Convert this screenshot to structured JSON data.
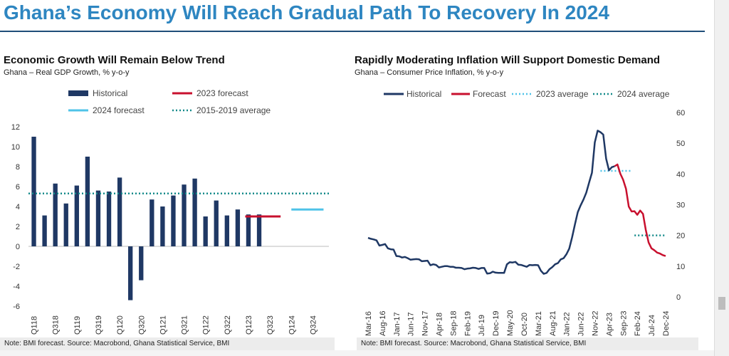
{
  "page": {
    "title": "Ghana’s Economy Will Reach Gradual Path To Recovery In 2024"
  },
  "colors": {
    "historical": "#1f3864",
    "forecast": "#c8102e",
    "avg_light": "#4fc3e8",
    "avg_dark": "#138a8a",
    "title": "#2e86c1"
  },
  "chart_data": [
    {
      "type": "bar",
      "title": "Economic Growth Will Remain Below Trend",
      "subtitle": "Ghana – Real GDP Growth, % y-o-y",
      "ylim": [
        -6,
        12
      ],
      "yticks": [
        12,
        10,
        8,
        6,
        4,
        2,
        0,
        -2,
        -4,
        -6
      ],
      "categories": [
        "Q118",
        "Q218",
        "Q318",
        "Q418",
        "Q119",
        "Q219",
        "Q319",
        "Q419",
        "Q120",
        "Q220",
        "Q320",
        "Q420",
        "Q121",
        "Q221",
        "Q321",
        "Q421",
        "Q122",
        "Q222",
        "Q322",
        "Q422",
        "Q123",
        "Q223",
        "Q323",
        "Q423",
        "Q124",
        "Q224",
        "Q324",
        "Q424"
      ],
      "xtick_labels": [
        "Q118",
        "Q318",
        "Q119",
        "Q319",
        "Q120",
        "Q320",
        "Q121",
        "Q321",
        "Q122",
        "Q322",
        "Q123",
        "Q323",
        "Q124",
        "Q324"
      ],
      "series": [
        {
          "name": "Historical",
          "type": "bar",
          "values": [
            11.0,
            3.1,
            6.3,
            4.3,
            6.1,
            9.0,
            5.6,
            5.5,
            6.9,
            -5.4,
            -3.4,
            4.7,
            4.0,
            5.1,
            6.2,
            6.8,
            3.0,
            4.6,
            3.1,
            3.7,
            3.2,
            3.2,
            null,
            null,
            null,
            null,
            null,
            null
          ]
        },
        {
          "name": "2023 forecast",
          "type": "line",
          "x_range": [
            "Q123",
            "Q423"
          ],
          "value": 3.0
        },
        {
          "name": "2024 forecast",
          "type": "line",
          "x_range": [
            "Q124",
            "Q424"
          ],
          "value": 3.7
        },
        {
          "name": "2015-2019 average",
          "type": "dotted",
          "x_range": [
            "Q118",
            "Q424"
          ],
          "value": 5.3
        }
      ],
      "legend": [
        "Historical",
        "2023 forecast",
        "2024 forecast",
        "2015-2019 average"
      ],
      "legend_placement": "top",
      "footer": "Note: BMI forecast. Source: Macrobond, Ghana Statistical Service, BMI"
    },
    {
      "type": "line",
      "title": "Rapidly Moderating Inflation Will Support Domestic Demand",
      "subtitle": "Ghana – Consumer Price Inflation, % y-o-y",
      "ylim": [
        0,
        60
      ],
      "yticks": [
        60,
        50,
        40,
        30,
        20,
        10,
        0
      ],
      "y_axis_side": "right",
      "x_range": [
        "2016-03",
        "2024-12"
      ],
      "xtick_labels": [
        "Mar-16",
        "Aug-16",
        "Jan-17",
        "Jun-17",
        "Nov-17",
        "Apr-18",
        "Sep-18",
        "Feb-19",
        "Jul-19",
        "Dec-19",
        "May-20",
        "Oct-20",
        "Mar-21",
        "Aug-21",
        "Jan-22",
        "Jun-22",
        "Nov-22",
        "Apr-23",
        "Sep-23",
        "Feb-24",
        "Jul-24",
        "Dec-24"
      ],
      "series": [
        {
          "name": "Historical",
          "x": [
            "2016-03",
            "2016-04",
            "2016-05",
            "2016-06",
            "2016-07",
            "2016-08",
            "2016-09",
            "2016-10",
            "2016-11",
            "2016-12",
            "2017-01",
            "2017-02",
            "2017-03",
            "2017-04",
            "2017-05",
            "2017-06",
            "2017-07",
            "2017-08",
            "2017-09",
            "2017-10",
            "2017-11",
            "2017-12",
            "2018-01",
            "2018-02",
            "2018-03",
            "2018-04",
            "2018-05",
            "2018-06",
            "2018-07",
            "2018-08",
            "2018-09",
            "2018-10",
            "2018-11",
            "2018-12",
            "2019-01",
            "2019-02",
            "2019-03",
            "2019-04",
            "2019-05",
            "2019-06",
            "2019-07",
            "2019-08",
            "2019-09",
            "2019-10",
            "2019-11",
            "2019-12",
            "2020-01",
            "2020-02",
            "2020-03",
            "2020-04",
            "2020-05",
            "2020-06",
            "2020-07",
            "2020-08",
            "2020-09",
            "2020-10",
            "2020-11",
            "2020-12",
            "2021-01",
            "2021-02",
            "2021-03",
            "2021-04",
            "2021-05",
            "2021-06",
            "2021-07",
            "2021-08",
            "2021-09",
            "2021-10",
            "2021-11",
            "2021-12",
            "2022-01",
            "2022-02",
            "2022-03",
            "2022-04",
            "2022-05",
            "2022-06",
            "2022-07",
            "2022-08",
            "2022-09",
            "2022-10",
            "2022-11",
            "2022-12",
            "2023-01",
            "2023-02",
            "2023-03",
            "2023-04",
            "2023-05",
            "2023-06"
          ],
          "y": [
            19.2,
            18.9,
            18.7,
            18.4,
            16.7,
            16.9,
            17.2,
            15.8,
            15.5,
            15.4,
            13.3,
            13.2,
            12.8,
            13.0,
            12.6,
            12.1,
            12.2,
            12.3,
            12.2,
            11.6,
            11.7,
            11.8,
            10.3,
            10.6,
            10.4,
            9.6,
            9.8,
            10.0,
            10.0,
            9.8,
            9.8,
            9.5,
            9.5,
            9.4,
            9.0,
            9.2,
            9.3,
            9.5,
            9.4,
            9.1,
            9.4,
            9.4,
            7.6,
            7.7,
            8.2,
            7.9,
            7.8,
            7.8,
            7.8,
            10.6,
            11.3,
            11.2,
            11.4,
            10.5,
            10.4,
            10.1,
            9.8,
            10.4,
            10.3,
            10.4,
            10.3,
            8.5,
            7.5,
            7.8,
            9.0,
            9.7,
            10.6,
            11.0,
            12.2,
            12.6,
            13.9,
            15.7,
            19.4,
            23.6,
            27.6,
            29.8,
            31.7,
            33.9,
            37.2,
            40.4,
            50.3,
            54.1,
            53.6,
            52.8,
            45.0,
            41.2,
            42.2,
            42.5
          ]
        },
        {
          "name": "Forecast",
          "x": [
            "2023-07",
            "2023-08",
            "2023-09",
            "2023-10",
            "2023-11",
            "2023-12",
            "2024-01",
            "2024-02",
            "2024-03",
            "2024-04",
            "2024-05",
            "2024-06",
            "2024-07",
            "2024-08",
            "2024-09",
            "2024-10",
            "2024-11",
            "2024-12"
          ],
          "y": [
            43.1,
            40.1,
            38.1,
            35.2,
            29.4,
            27.8,
            27.9,
            26.7,
            28.1,
            27.0,
            21.8,
            17.7,
            15.8,
            15.2,
            14.4,
            14.1,
            13.6,
            13.3
          ]
        },
        {
          "name": "2023 average",
          "type": "dotted",
          "x_range": [
            "2023-01",
            "2023-12"
          ],
          "value": 41.0
        },
        {
          "name": "2024 average",
          "type": "dotted",
          "x_range": [
            "2024-01",
            "2024-12"
          ],
          "value": 20.0
        }
      ],
      "legend": [
        "Historical",
        "Forecast",
        "2023 average",
        "2024 average"
      ],
      "legend_placement": "top",
      "footer": "Note: BMI forecast. Source: Macrobond, Ghana Statistical Service, BMI"
    }
  ]
}
